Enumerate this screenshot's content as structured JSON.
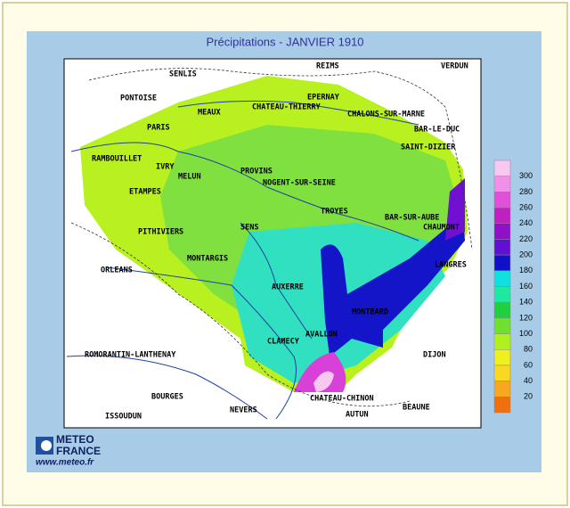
{
  "title": "Précipitations - JANVIER 1910",
  "cities": [
    "SENLIS",
    "REIMS",
    "VERDUN",
    "PONTOISE",
    "EPERNAY",
    "CHATEAU-THIERRY",
    "MEAUX",
    "CHALONS-SUR-MARNE",
    "PARIS",
    "BAR-LE-DUC",
    "SAINT-DIZIER",
    "RAMBOUILLET",
    "IVRY",
    "PROVINS",
    "MELUN",
    "NOGENT-SUR-SEINE",
    "ETAMPES",
    "TROYES",
    "BAR-SUR-AUBE",
    "CHAUMONT",
    "PITHIVIERS",
    "SENS",
    "MONTARGIS",
    "LANGRES",
    "ORLEANS",
    "AUXERRE",
    "MONTBARD",
    "AVALLON",
    "CLAMECY",
    "ROMORANTIN-LANTHENAY",
    "DIJON",
    "BOURGES",
    "CHATEAU-CHINON",
    "NEVERS",
    "BEAUNE",
    "ISSOUDUN",
    "AUTUN"
  ],
  "legend": {
    "colors": [
      "#f8c8f0",
      "#f090e8",
      "#e050d8",
      "#c020c0",
      "#9010c8",
      "#6010d0",
      "#1010c8",
      "#10e0e0",
      "#20e8a0",
      "#20d040",
      "#70e030",
      "#b0f020",
      "#f0f020",
      "#f8d820",
      "#f8a820",
      "#f07010"
    ],
    "labels": [
      300,
      280,
      260,
      240,
      220,
      200,
      180,
      160,
      140,
      120,
      100,
      80,
      60,
      40,
      20
    ]
  },
  "logo": {
    "line1": "METEO",
    "line2": "FRANCE",
    "url": "www.meteo.fr"
  }
}
